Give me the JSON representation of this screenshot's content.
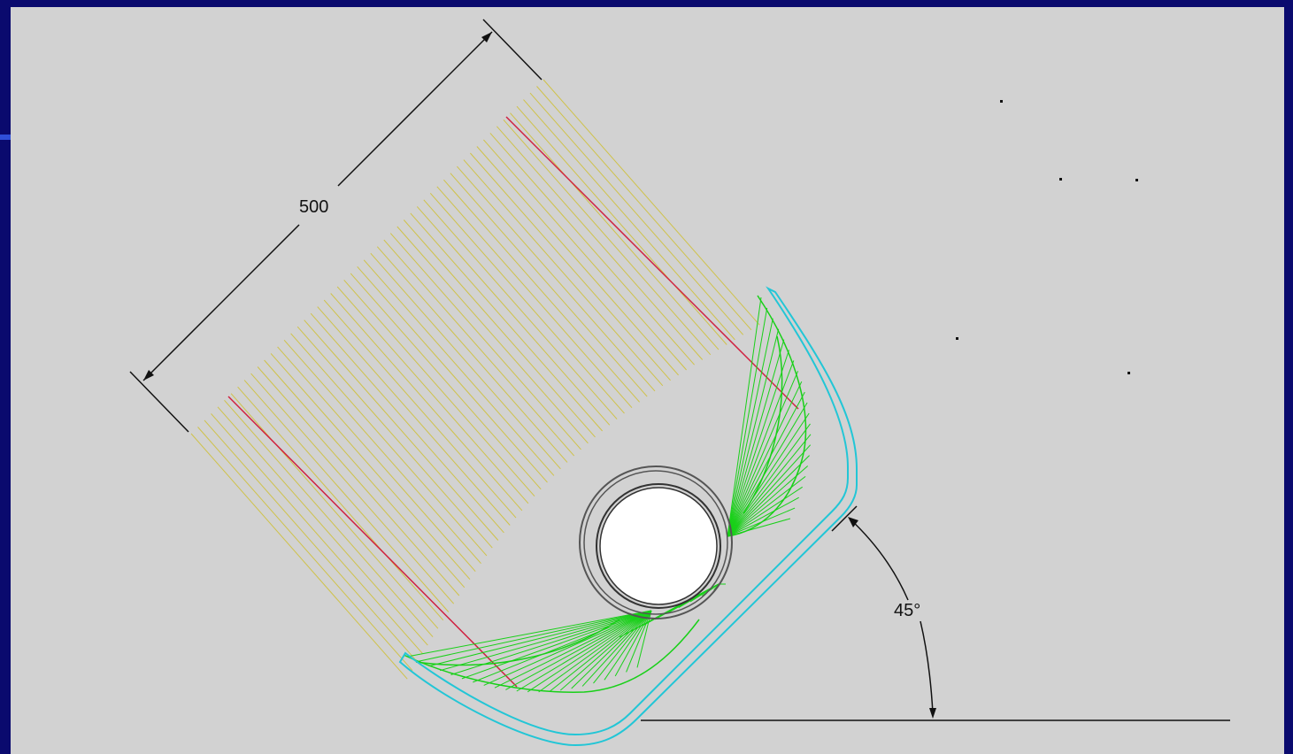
{
  "dimensions": {
    "length_label": "500",
    "angle_label": "45°"
  },
  "colors": {
    "frame": "#0a0a6e",
    "accent": "#2f4fd8",
    "background": "#d2d2d2",
    "incident_rays": "#cfc24a",
    "marked_rays": "#d02040",
    "reflected_rays": "#18d018",
    "reflector": "#22c6d6",
    "absorber": "#555555",
    "dimension_lines": "#111111"
  },
  "icons": [
    "dimension-arrow-icon"
  ]
}
